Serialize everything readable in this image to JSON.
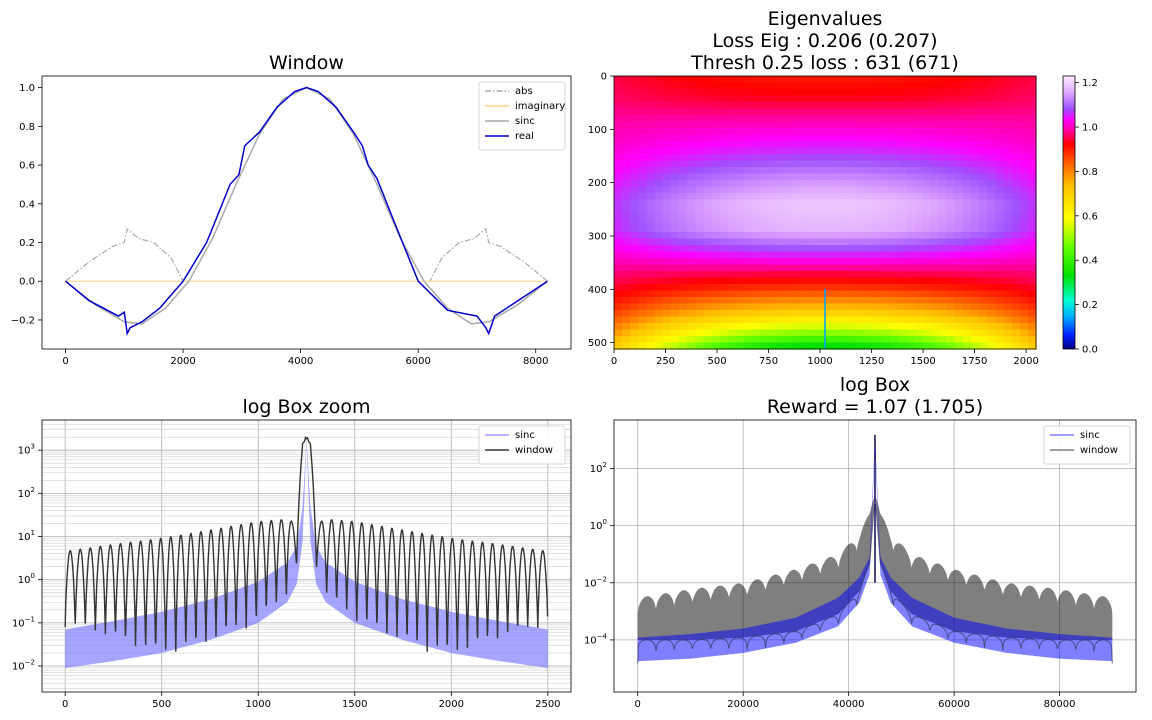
{
  "chart_data": [
    {
      "id": "window",
      "type": "line",
      "title_lines": [
        "Window"
      ],
      "xlim": [
        -400,
        8600
      ],
      "ylim": [
        -0.35,
        1.06
      ],
      "xticks": [
        0,
        2000,
        4000,
        6000,
        8000
      ],
      "yticks": [
        -0.2,
        0.0,
        0.2,
        0.4,
        0.6,
        0.8,
        1.0
      ],
      "ytick_labels": [
        "−0.2",
        "0.0",
        "0.2",
        "0.4",
        "0.6",
        "0.8",
        "1.0"
      ],
      "legend": {
        "position": "top-right",
        "entries": [
          "abs",
          "imaginary",
          "sinc",
          "real"
        ]
      },
      "series": [
        {
          "name": "abs",
          "color": "#aaaaaa",
          "dash": "dashdot",
          "x": [
            0,
            400,
            800,
            1000,
            1050,
            1250,
            1500,
            1800,
            2000
          ],
          "y": [
            0.0,
            0.1,
            0.18,
            0.2,
            0.27,
            0.22,
            0.2,
            0.12,
            0.0
          ]
        },
        {
          "name": "imaginary",
          "color": "#ffd280",
          "x": [
            0,
            8200
          ],
          "y": [
            0.0,
            0.0
          ]
        },
        {
          "name": "sinc",
          "color": "#aaaaaa",
          "x": [
            0,
            500,
            1000,
            1300,
            1700,
            2100,
            2500,
            2900,
            3300,
            3700,
            4100,
            4500,
            4900,
            5300,
            5700,
            6100,
            6500,
            6900,
            7200,
            7700,
            8200
          ],
          "y": [
            0.0,
            -0.12,
            -0.21,
            -0.22,
            -0.14,
            0.0,
            0.22,
            0.5,
            0.76,
            0.94,
            1.0,
            0.94,
            0.76,
            0.5,
            0.22,
            0.0,
            -0.14,
            -0.22,
            -0.21,
            -0.12,
            0.0
          ]
        },
        {
          "name": "real",
          "color": "#0000cc",
          "x": [
            0,
            400,
            900,
            1000,
            1050,
            1100,
            1300,
            1600,
            2000,
            2400,
            2800,
            2950,
            3050,
            3300,
            3600,
            3900,
            4100,
            4300,
            4600,
            4900,
            5050,
            5150,
            5300,
            5600,
            6000,
            6500,
            7000,
            7150,
            7200,
            7300,
            7700,
            8200
          ],
          "y": [
            0.0,
            -0.1,
            -0.18,
            -0.16,
            -0.27,
            -0.24,
            -0.21,
            -0.14,
            0.0,
            0.2,
            0.5,
            0.55,
            0.7,
            0.77,
            0.9,
            0.98,
            1.0,
            0.98,
            0.9,
            0.77,
            0.7,
            0.6,
            0.53,
            0.3,
            0.0,
            -0.15,
            -0.18,
            -0.24,
            -0.27,
            -0.18,
            -0.1,
            0.0
          ]
        }
      ]
    },
    {
      "id": "eigen",
      "type": "heatmap",
      "title_lines": [
        "Eigenvalues",
        "Loss Eig : 0.206 (0.207)",
        "Thresh 0.25 loss : 631 (671)"
      ],
      "xlim": [
        0,
        2048
      ],
      "ylim": [
        512,
        0
      ],
      "xticks": [
        0,
        250,
        500,
        750,
        1000,
        1250,
        1500,
        1750,
        2000
      ],
      "yticks": [
        0,
        100,
        200,
        300,
        400,
        500
      ],
      "colormap": "gist_ncar",
      "colorbar": {
        "ticks": [
          0.0,
          0.2,
          0.4,
          0.6,
          0.8,
          1.0,
          1.2
        ],
        "range": [
          0.0,
          1.23
        ]
      },
      "row_profile": {
        "row": [
          0,
          40,
          90,
          140,
          190,
          240,
          290,
          330,
          370,
          400,
          440,
          480,
          512
        ],
        "value": [
          0.9,
          0.93,
          1.0,
          1.06,
          1.13,
          1.19,
          1.17,
          1.07,
          0.95,
          0.87,
          0.72,
          0.5,
          0.3
        ]
      },
      "col_falloff": 0.6
    },
    {
      "id": "logzoom",
      "type": "line",
      "title_lines": [
        "log Box zoom"
      ],
      "scale": "log",
      "grid": true,
      "xlim": [
        -120,
        2620
      ],
      "ylim": [
        0.0025,
        5000
      ],
      "xticks": [
        0,
        500,
        1000,
        1500,
        2000,
        2500
      ],
      "ytick_exponents": [
        -2,
        -1,
        0,
        1,
        2,
        3
      ],
      "legend": {
        "position": "top-right",
        "entries": [
          "sinc",
          "window"
        ]
      },
      "series": [
        {
          "name": "sinc",
          "color": "#7777ff",
          "alpha": 0.65,
          "x": [
            0,
            250,
            500,
            750,
            1000,
            1150,
            1200,
            1230,
            1250,
            1270,
            1300,
            1350,
            1500,
            1750,
            2000,
            2250,
            2500
          ],
          "upper": [
            0.07,
            0.11,
            0.18,
            0.35,
            0.9,
            2.5,
            6.0,
            50,
            1800,
            50,
            6.0,
            2.5,
            0.9,
            0.35,
            0.18,
            0.11,
            0.07
          ],
          "lower": [
            0.009,
            0.013,
            0.02,
            0.04,
            0.1,
            0.3,
            0.8,
            8,
            1500,
            8,
            0.8,
            0.3,
            0.1,
            0.04,
            0.02,
            0.013,
            0.009
          ]
        },
        {
          "name": "window",
          "color": "#333333",
          "x": [
            0,
            250,
            500,
            750,
            1000,
            1150,
            1200,
            1230,
            1245,
            1255,
            1270,
            1300,
            1350,
            1500,
            1750,
            2000,
            2250,
            2500
          ],
          "upper": [
            4.5,
            6.5,
            9,
            14,
            22,
            25,
            20,
            1500,
            2200,
            2200,
            1500,
            20,
            25,
            22,
            14,
            9,
            6.5,
            4.5
          ],
          "lower": [
            0.08,
            0.04,
            0.015,
            0.03,
            0.1,
            0.4,
            2,
            500,
            1800,
            1800,
            500,
            2,
            0.4,
            0.1,
            0.03,
            0.015,
            0.04,
            0.08
          ],
          "oscillations": 48
        }
      ]
    },
    {
      "id": "logbox",
      "type": "line",
      "title_lines": [
        "log Box",
        "Reward = 1.07 (1.705)"
      ],
      "scale": "log",
      "grid": true,
      "xlim": [
        -4500,
        94500
      ],
      "ylim": [
        1.5e-06,
        5000
      ],
      "xticks": [
        0,
        20000,
        40000,
        60000,
        80000
      ],
      "ytick_exponents": [
        -4,
        -2,
        0,
        2
      ],
      "legend": {
        "position": "top-right",
        "entries": [
          "sinc",
          "window"
        ]
      },
      "series": [
        {
          "name": "sinc",
          "color": "#0000ff",
          "alpha": 0.5,
          "x": [
            0,
            10000,
            20000,
            30000,
            38000,
            42000,
            44000,
            45000,
            46000,
            48000,
            52000,
            60000,
            70000,
            80000,
            90000
          ],
          "upper": [
            0.00012,
            0.00016,
            0.00025,
            0.0006,
            0.003,
            0.015,
            0.08,
            1500,
            0.08,
            0.015,
            0.003,
            0.0006,
            0.00025,
            0.00016,
            0.00012
          ],
          "lower": [
            1.8e-05,
            2.2e-05,
            3.5e-05,
            8e-05,
            0.0003,
            0.002,
            0.02,
            800,
            0.02,
            0.002,
            0.0003,
            8e-05,
            3.5e-05,
            2.2e-05,
            1.8e-05
          ]
        },
        {
          "name": "window",
          "color": "#000000",
          "alpha": 0.5,
          "x": [
            0,
            10000,
            20000,
            30000,
            38000,
            42000,
            44000,
            45000,
            46000,
            48000,
            52000,
            60000,
            70000,
            80000,
            90000
          ],
          "upper": [
            0.003,
            0.006,
            0.01,
            0.03,
            0.1,
            0.5,
            3,
            30,
            3,
            0.5,
            0.1,
            0.03,
            0.01,
            0.006,
            0.003
          ],
          "lower": [
            0.0001,
            0.0001,
            0.00012,
            0.0002,
            0.0008,
            0.005,
            0.05,
            20,
            0.05,
            0.005,
            0.0008,
            0.0002,
            0.00012,
            0.0001,
            0.0001
          ],
          "lobes": 26
        }
      ]
    }
  ]
}
